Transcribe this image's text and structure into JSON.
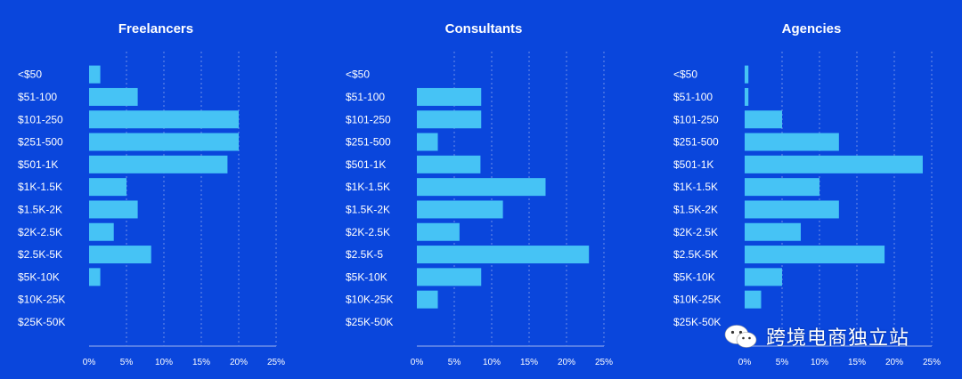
{
  "colors": {
    "background": "#0a46dc",
    "bar": "#46c3f5",
    "text": "#ffffff",
    "grid": "#6f8fe8"
  },
  "watermark": {
    "text": "跨境电商独立站",
    "icon": "wechat-icon"
  },
  "chart_data": [
    {
      "type": "bar",
      "orientation": "horizontal",
      "title": "Freelancers",
      "categories": [
        "<$50",
        "$51-100",
        "$101-250",
        "$251-500",
        "$501-1K",
        "$1K-1.5K",
        "$1.5K-2K",
        "$2K-2.5K",
        "$2.5K-5K",
        "$5K-10K",
        "$10K-25K",
        "$25K-50K"
      ],
      "values": [
        1.5,
        6.5,
        20,
        20,
        18.5,
        5,
        6.5,
        3.3,
        8.3,
        1.5,
        0,
        0
      ],
      "xticks": [
        "0%",
        "5%",
        "10%",
        "15%",
        "20%",
        "25%"
      ],
      "xlim": [
        0,
        25
      ],
      "grid": true
    },
    {
      "type": "bar",
      "orientation": "horizontal",
      "title": "Consultants",
      "categories": [
        "<$50",
        "$51-100",
        "$101-250",
        "$251-500",
        "$501-1K",
        "$1K-1.5K",
        "$1.5K-2K",
        "$2K-2.5K",
        "$2.5K-5",
        "$5K-10K",
        "$10K-25K",
        "$25K-50K"
      ],
      "values": [
        0,
        8.6,
        8.6,
        2.8,
        8.5,
        17.2,
        11.5,
        5.7,
        23,
        8.6,
        2.8,
        0
      ],
      "xticks": [
        "0%",
        "5%",
        "10%",
        "15%",
        "20%",
        "25%"
      ],
      "xlim": [
        0,
        25
      ],
      "grid": true
    },
    {
      "type": "bar",
      "orientation": "horizontal",
      "title": "Agencies",
      "categories": [
        "<$50",
        "$51-100",
        "$101-250",
        "$251-500",
        "$501-1K",
        "$1K-1.5K",
        "$1.5K-2K",
        "$2K-2.5K",
        "$2.5K-5K",
        "$5K-10K",
        "$10K-25K",
        "$25K-50K"
      ],
      "values": [
        0.5,
        0.5,
        5,
        12.6,
        23.8,
        10,
        12.6,
        7.5,
        18.7,
        5,
        2.2,
        0
      ],
      "xticks": [
        "0%",
        "5%",
        "10%",
        "15%",
        "20%",
        "25%"
      ],
      "xlim": [
        0,
        25
      ],
      "grid": true
    }
  ]
}
